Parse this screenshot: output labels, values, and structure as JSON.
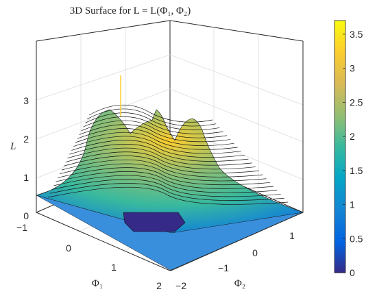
{
  "chart_data": {
    "type": "surface",
    "title": "3D Surface for L = L(Φ₁, Φ₂)",
    "xlabel": "Φ₁",
    "ylabel": "Φ₂",
    "zlabel": "L",
    "x_ticks": [
      "−1",
      "0",
      "1",
      "2"
    ],
    "x_values": [
      -1,
      0,
      1,
      2
    ],
    "y_ticks": [
      "−2",
      "−1",
      "0",
      "1"
    ],
    "y_values": [
      -2,
      -1,
      0,
      1
    ],
    "z_ticks": [
      "0",
      "1",
      "2",
      "3"
    ],
    "z_values": [
      0,
      1,
      2,
      3
    ],
    "xlim": [
      -1,
      2
    ],
    "ylim": [
      -2,
      1.6
    ],
    "zlim": [
      0,
      3.7
    ],
    "grid": true,
    "contour_lines": true,
    "colormap": "parula",
    "colorbar": {
      "location": "right",
      "ticks": [
        "0",
        "0.5",
        "1",
        "1.5",
        "2",
        "2.5",
        "3",
        "3.5"
      ],
      "values": [
        0,
        0.5,
        1,
        1.5,
        2,
        2.5,
        3,
        3.5
      ],
      "range": [
        0,
        3.7
      ]
    },
    "peaks": [
      {
        "phi1": 0.0,
        "phi2": -0.3,
        "L": 2.6
      },
      {
        "phi1": 0.6,
        "phi2": 0.3,
        "L": 2.8
      },
      {
        "phi1": 1.1,
        "phi2": -0.2,
        "L": 2.5
      },
      {
        "phi1": 0.3,
        "phi2": 0.0,
        "L": 3.7
      }
    ],
    "trough": {
      "phi1": 1.5,
      "phi2": 0.8,
      "L": 0.0
    }
  },
  "colors": {
    "parula": [
      "#352a87",
      "#0363e1",
      "#1485d4",
      "#06a7c6",
      "#38b99e",
      "#92bf73",
      "#d9ba56",
      "#fcce2e",
      "#f9fb0e"
    ],
    "axis": "#262626",
    "grid": "#dcdcdc"
  }
}
